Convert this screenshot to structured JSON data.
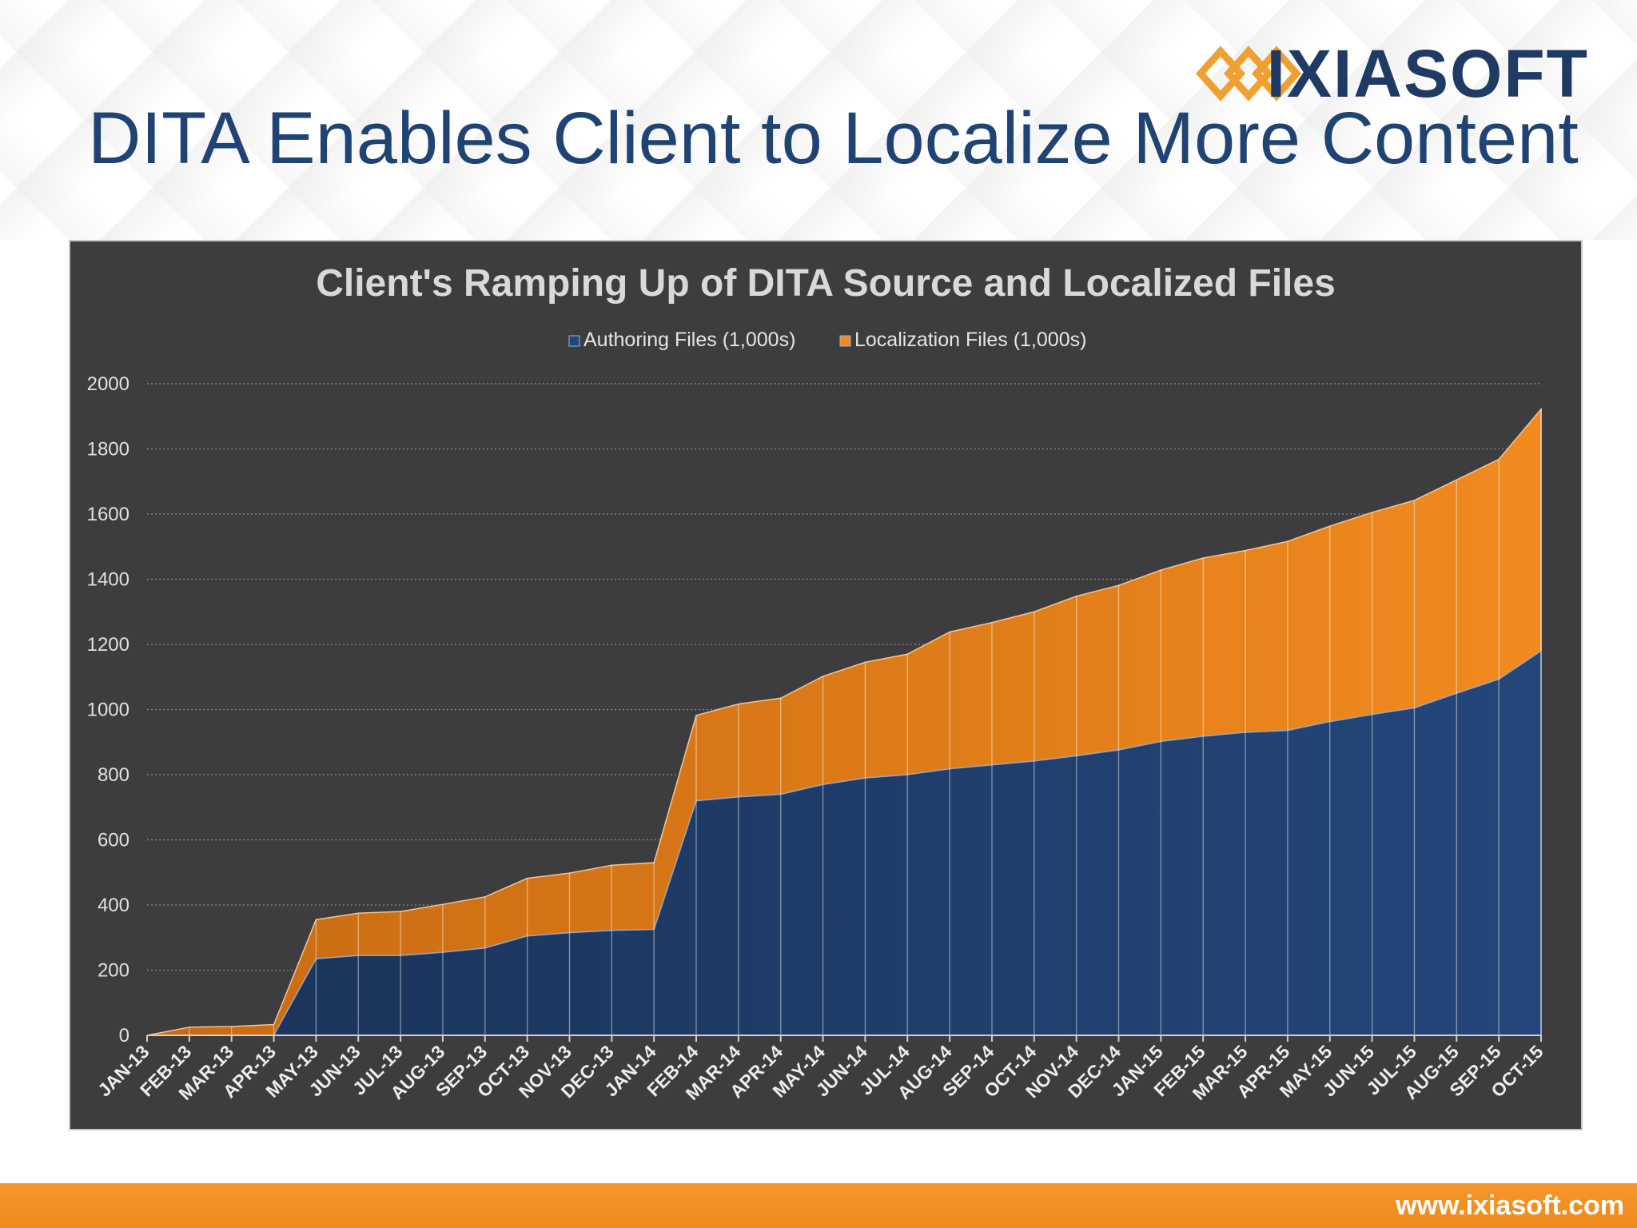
{
  "slide": {
    "title": "DITA Enables Client to Localize More Content",
    "logo_text": "IXIASOFT",
    "footer_url": "www.ixiasoft.com"
  },
  "colors": {
    "authoring": "#24467a",
    "localization": "#f18a1f",
    "panel": "#3d3c3f",
    "title_blue": "#1f4373"
  },
  "chart_data": {
    "type": "area",
    "stacked": true,
    "title": "Client's Ramping Up of DITA Source and Localized Files",
    "xlabel": "",
    "ylabel": "",
    "ylim": [
      0,
      2000
    ],
    "yticks": [
      0,
      200,
      400,
      600,
      800,
      1000,
      1200,
      1400,
      1600,
      1800,
      2000
    ],
    "grid": true,
    "legend_position": "top",
    "categories": [
      "JAN-13",
      "FEB-13",
      "MAR-13",
      "APR-13",
      "MAY-13",
      "JUN-13",
      "JUL-13",
      "AUG-13",
      "SEP-13",
      "OCT-13",
      "NOV-13",
      "DEC-13",
      "JAN-14",
      "FEB-14",
      "MAR-14",
      "APR-14",
      "MAY-14",
      "JUN-14",
      "JUL-14",
      "AUG-14",
      "SEP-14",
      "OCT-14",
      "NOV-14",
      "DEC-14",
      "JAN-15",
      "FEB-15",
      "MAR-15",
      "APR-15",
      "MAY-15",
      "JUN-15",
      "JUL-15",
      "AUG-15",
      "SEP-15",
      "OCT-15"
    ],
    "series": [
      {
        "name": "Authoring Files (1,000s)",
        "values": [
          0,
          0,
          0,
          0,
          235,
          245,
          245,
          255,
          268,
          305,
          315,
          322,
          325,
          720,
          732,
          740,
          770,
          790,
          800,
          818,
          830,
          842,
          858,
          876,
          902,
          918,
          930,
          936,
          963,
          985,
          1005,
          1050,
          1093,
          1180
        ]
      },
      {
        "name": "Localization Files (1,000s)",
        "values": [
          0,
          25,
          27,
          33,
          120,
          130,
          135,
          147,
          157,
          177,
          183,
          200,
          205,
          262,
          285,
          295,
          332,
          355,
          370,
          420,
          437,
          458,
          490,
          505,
          526,
          547,
          558,
          580,
          600,
          620,
          637,
          655,
          675,
          742
        ]
      }
    ]
  }
}
